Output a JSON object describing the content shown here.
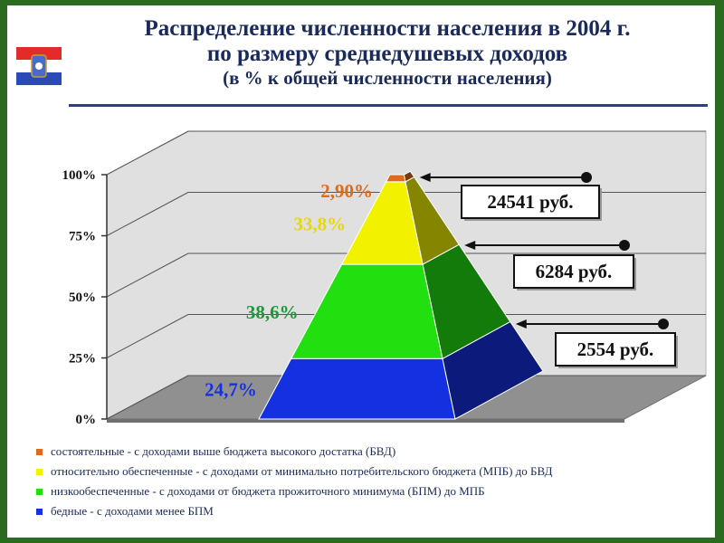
{
  "title": {
    "line1": "Распределение численности населения в 2004 г.",
    "line2": "по размеру среднедушевых доходов",
    "line3": "(в % к общей численности населения)"
  },
  "flag_icon": "samara-region-flag-icon",
  "colors": {
    "poor": "#1530e0",
    "low": "#22e010",
    "medium": "#f2f200",
    "rich": "#e06a1a",
    "axis_text": "#111111",
    "legend_text": "#1a2a5a",
    "title_text": "#1a2a5a"
  },
  "chart_data": {
    "type": "pyramid",
    "title": "Распределение численности населения в 2004 г. по размеру среднедушевых доходов",
    "subtitle": "(в % к общей численности населения)",
    "ylim": [
      0,
      100
    ],
    "y_ticks": [
      "0%",
      "25%",
      "50%",
      "75%",
      "100%"
    ],
    "grid": true,
    "series": [
      {
        "key": "poor",
        "label": "24,7%",
        "value": 24.7,
        "color": "#1530e0",
        "label_color": "#1530e0"
      },
      {
        "key": "low",
        "label": "38,6%",
        "value": 38.6,
        "color": "#22e010",
        "label_color": "#1a9a3a"
      },
      {
        "key": "medium",
        "label": "33,8%",
        "value": 33.8,
        "color": "#f2f200",
        "label_color": "#e8d800"
      },
      {
        "key": "rich",
        "label": "2,90%",
        "value": 2.9,
        "color": "#e06a1a",
        "label_color": "#e06a1a"
      }
    ],
    "thresholds": [
      {
        "label": "2554 руб.",
        "between": [
          "poor",
          "low"
        ]
      },
      {
        "label": "6284 руб.",
        "between": [
          "low",
          "medium"
        ]
      },
      {
        "label": "24541 руб.",
        "between": [
          "medium",
          "rich"
        ]
      }
    ]
  },
  "legend": [
    {
      "key": "rich",
      "text": "состоятельные - с доходами выше бюджета высокого достатка (БВД)"
    },
    {
      "key": "medium",
      "text": "относительно обеспеченные - с доходами от минимально потребительского бюджета (МПБ) до БВД"
    },
    {
      "key": "low",
      "text": "низкообеспеченные - с доходами от бюджета прожиточного минимума (БПМ) до МПБ"
    },
    {
      "key": "poor",
      "text": "бедные - с доходами менее БПМ"
    }
  ]
}
